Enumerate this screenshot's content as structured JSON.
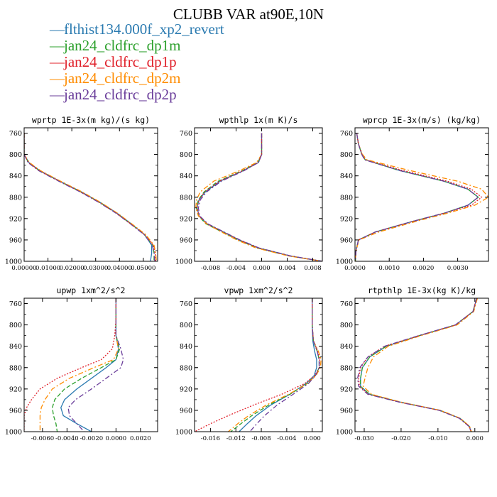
{
  "title": "CLUBB VAR at90E,10N",
  "legend": [
    {
      "label": "flthist134.000f_xp2_revert",
      "color": "#2a7ab0",
      "dash": "solid"
    },
    {
      "label": "jan24_cldfrc_dp1m",
      "color": "#2ca02c",
      "dash": "dash"
    },
    {
      "label": "jan24_cldfrc_dp1p",
      "color": "#e0202a",
      "dash": "dot"
    },
    {
      "label": "jan24_cldfrc_dp2m",
      "color": "#ff8c00",
      "dash": "dashdot"
    },
    {
      "label": "jan24_cldfrc_dp2p",
      "color": "#6a3d9a",
      "dash": "dashdot"
    }
  ],
  "chart_data": [
    {
      "type": "line",
      "title": "wprtp  1E-3x(m kg)/(s kg)",
      "xlim": [
        0.0,
        0.056
      ],
      "ylim": [
        1000,
        750
      ],
      "xticks": [
        "0.00000",
        "0.01000",
        "0.02000",
        "0.03000",
        "0.04000",
        "0.05000"
      ],
      "xtick_values": [
        0.0,
        0.01,
        0.02,
        0.03,
        0.04,
        0.05
      ],
      "yticks": [
        760,
        800,
        840,
        880,
        920,
        960,
        1000
      ],
      "y": [
        760,
        780,
        800,
        815,
        830,
        850,
        870,
        890,
        910,
        930,
        950,
        970,
        985,
        1000
      ],
      "series": [
        {
          "values": [
            0,
            0,
            0,
            0.002,
            0.0065,
            0.015,
            0.024,
            0.032,
            0.039,
            0.045,
            0.0505,
            0.0535,
            0.0535,
            0.053
          ]
        },
        {
          "values": [
            0,
            0,
            0,
            0.0018,
            0.0063,
            0.0148,
            0.0238,
            0.0318,
            0.0388,
            0.0448,
            0.0505,
            0.054,
            0.0545,
            0.0545
          ]
        },
        {
          "values": [
            0,
            0,
            0,
            0.0018,
            0.0063,
            0.0148,
            0.0236,
            0.0316,
            0.0386,
            0.0447,
            0.0505,
            0.0542,
            0.055,
            0.0552
          ]
        },
        {
          "values": [
            0,
            0,
            0,
            0.0022,
            0.0068,
            0.0153,
            0.0243,
            0.0322,
            0.0392,
            0.0452,
            0.051,
            0.0545,
            0.0552,
            0.0555
          ]
        },
        {
          "values": [
            0,
            0,
            0,
            0.0016,
            0.006,
            0.0145,
            0.0235,
            0.0315,
            0.0386,
            0.0446,
            0.0503,
            0.0538,
            0.0546,
            0.0548
          ]
        }
      ]
    },
    {
      "type": "line",
      "title": "wpthlp  1x(m K)/s",
      "xlim": [
        -0.0105,
        0.0095
      ],
      "ylim": [
        1000,
        750
      ],
      "xticks": [
        "-0.008",
        "-0.004",
        "0.000",
        "0.004",
        "0.008"
      ],
      "xtick_values": [
        -0.008,
        -0.004,
        0.0,
        0.004,
        0.008
      ],
      "yticks": [
        760,
        800,
        840,
        880,
        920,
        960,
        1000
      ],
      "y": [
        760,
        780,
        800,
        815,
        830,
        850,
        870,
        885,
        900,
        915,
        930,
        945,
        960,
        975,
        990,
        1000
      ],
      "series": [
        {
          "values": [
            0,
            0,
            0,
            -0.0005,
            -0.0028,
            -0.0065,
            -0.0088,
            -0.0098,
            -0.0101,
            -0.0098,
            -0.0085,
            -0.006,
            -0.0035,
            -0.0005,
            0.0045,
            0.0095
          ]
        },
        {
          "values": [
            0,
            0,
            0,
            -0.0006,
            -0.003,
            -0.0068,
            -0.009,
            -0.0099,
            -0.0102,
            -0.0099,
            -0.0087,
            -0.0062,
            -0.0037,
            -0.0007,
            0.0043,
            0.0095
          ]
        },
        {
          "values": [
            0,
            0,
            0,
            -0.0005,
            -0.0029,
            -0.0066,
            -0.0089,
            -0.0098,
            -0.0101,
            -0.0098,
            -0.0085,
            -0.006,
            -0.0035,
            -0.0005,
            0.0044,
            0.0095
          ]
        },
        {
          "values": [
            0,
            0,
            0,
            -0.0008,
            -0.0034,
            -0.0075,
            -0.0096,
            -0.0102,
            -0.0103,
            -0.0099,
            -0.0086,
            -0.0063,
            -0.0039,
            -0.0009,
            0.0042,
            0.0095
          ]
        },
        {
          "values": [
            0,
            0,
            0,
            -0.0005,
            -0.0027,
            -0.0063,
            -0.0086,
            -0.0096,
            -0.0099,
            -0.0097,
            -0.0084,
            -0.0059,
            -0.0034,
            -0.0004,
            0.0046,
            0.0095
          ]
        }
      ]
    },
    {
      "type": "line",
      "title": "wprcp  1E-3x(m/s) (kg/kg)",
      "xlim": [
        0.0,
        0.0039
      ],
      "ylim": [
        1000,
        750
      ],
      "xticks": [
        "0.0000",
        "0.0010",
        "0.0020",
        "0.0030"
      ],
      "xtick_values": [
        0.0,
        0.001,
        0.002,
        0.003
      ],
      "yticks": [
        760,
        800,
        840,
        880,
        920,
        960,
        1000
      ],
      "y": [
        760,
        780,
        800,
        810,
        830,
        850,
        865,
        880,
        895,
        910,
        925,
        945,
        960,
        980,
        1000
      ],
      "series": [
        {
          "values": [
            5e-05,
            0.0001,
            0.0002,
            0.0003,
            0.0013,
            0.0026,
            0.0033,
            0.0036,
            0.0033,
            0.0026,
            0.0017,
            0.0006,
            0.0001,
            3e-05,
            1e-05
          ]
        },
        {
          "values": [
            5e-05,
            0.0001,
            0.0002,
            0.0003,
            0.0013,
            0.0026,
            0.0033,
            0.0036,
            0.0033,
            0.0026,
            0.0017,
            0.0006,
            0.0001,
            3e-05,
            1e-05
          ]
        },
        {
          "values": [
            5e-05,
            0.0001,
            0.0002,
            0.0003,
            0.0014,
            0.0027,
            0.0034,
            0.0037,
            0.0034,
            0.0026,
            0.0017,
            0.0006,
            0.0001,
            3e-05,
            1e-05
          ]
        },
        {
          "values": [
            5e-05,
            0.0001,
            0.00022,
            0.00035,
            0.0016,
            0.003,
            0.0037,
            0.0039,
            0.0035,
            0.0027,
            0.0018,
            0.0007,
            0.00012,
            3e-05,
            1e-05
          ]
        },
        {
          "values": [
            5e-05,
            0.0001,
            0.0002,
            0.00028,
            0.0013,
            0.0026,
            0.0033,
            0.0036,
            0.0033,
            0.0026,
            0.0017,
            0.0006,
            0.0001,
            3e-05,
            1e-05
          ]
        }
      ]
    },
    {
      "type": "line",
      "title": "upwp  1xm^2/s^2",
      "xlim": [
        -0.0075,
        0.0034
      ],
      "ylim": [
        1000,
        750
      ],
      "xticks": [
        "-0.0060",
        "-0.0040",
        "-0.0020",
        "0.0000",
        "0.0020"
      ],
      "xtick_values": [
        -0.006,
        -0.004,
        -0.002,
        0.0,
        0.002
      ],
      "yticks": [
        760,
        800,
        840,
        880,
        920,
        960,
        1000
      ],
      "y": [
        750,
        790,
        820,
        845,
        865,
        880,
        900,
        920,
        940,
        955,
        970,
        985,
        1000
      ],
      "series": [
        {
          "values": [
            0.0,
            0.0,
            0.0,
            0.0002,
            0.0,
            -0.0008,
            -0.002,
            -0.0032,
            -0.0042,
            -0.0045,
            -0.0043,
            -0.0032,
            -0.002
          ]
        },
        {
          "values": [
            0.0,
            0.0,
            0.0,
            0.0003,
            0.0,
            -0.0012,
            -0.0028,
            -0.0042,
            -0.005,
            -0.0052,
            -0.0051,
            -0.0049,
            -0.0048
          ]
        },
        {
          "values": [
            0.0,
            0.0,
            -0.0001,
            -0.0003,
            -0.0012,
            -0.0028,
            -0.0048,
            -0.0062,
            -0.0069,
            -0.0073,
            -0.0075,
            -0.0075,
            -0.0075
          ]
        },
        {
          "values": [
            0.0,
            0.0,
            0.0,
            0.0002,
            -0.0002,
            -0.0018,
            -0.0038,
            -0.0052,
            -0.0058,
            -0.0061,
            -0.0062,
            -0.0062,
            -0.0062
          ]
        },
        {
          "values": [
            0.0,
            0.0,
            0.0,
            0.0004,
            0.0006,
            0.0004,
            -0.0008,
            -0.002,
            -0.0033,
            -0.0039,
            -0.0038,
            -0.0032,
            -0.0026
          ]
        }
      ]
    },
    {
      "type": "line",
      "title": "vpwp  1xm^2/s^2",
      "xlim": [
        -0.0185,
        0.0016
      ],
      "ylim": [
        1000,
        750
      ],
      "xticks": [
        "-0.016",
        "-0.012",
        "-0.008",
        "-0.004",
        "0.000"
      ],
      "xtick_values": [
        -0.016,
        -0.012,
        -0.008,
        -0.004,
        0.0
      ],
      "yticks": [
        760,
        800,
        840,
        880,
        920,
        960,
        1000
      ],
      "y": [
        750,
        800,
        830,
        850,
        865,
        880,
        895,
        910,
        930,
        950,
        970,
        985,
        1000
      ],
      "series": [
        {
          "values": [
            0.0,
            0.0,
            0.0001,
            0.0004,
            0.0007,
            0.0007,
            0.0003,
            -0.001,
            -0.0035,
            -0.0065,
            -0.0088,
            -0.0102,
            -0.0115
          ]
        },
        {
          "values": [
            0.0,
            0.0,
            0.0002,
            0.0008,
            0.0011,
            0.0011,
            0.0005,
            -0.0008,
            -0.0035,
            -0.0068,
            -0.0095,
            -0.0112,
            -0.0128
          ]
        },
        {
          "values": [
            0.0,
            0.0,
            0.0002,
            0.0009,
            0.0012,
            0.0011,
            0.0004,
            -0.0012,
            -0.0048,
            -0.0092,
            -0.0132,
            -0.016,
            -0.0185
          ]
        },
        {
          "values": [
            0.0,
            0.0,
            0.0002,
            0.001,
            0.0014,
            0.0013,
            0.0006,
            -0.0008,
            -0.0037,
            -0.0072,
            -0.01,
            -0.0117,
            -0.0132
          ]
        },
        {
          "values": [
            0.0,
            0.0,
            0.0002,
            0.0008,
            0.0011,
            0.0011,
            0.0005,
            -0.0006,
            -0.003,
            -0.0055,
            -0.0075,
            -0.0087,
            -0.0098
          ]
        }
      ]
    },
    {
      "type": "line",
      "title": "rtpthlp  1E-3x(kg K)/kg",
      "xlim": [
        -0.0325,
        0.0037
      ],
      "ylim": [
        1000,
        750
      ],
      "xticks": [
        "-0.030",
        "-0.020",
        "-0.010",
        "0.000"
      ],
      "xtick_values": [
        -0.03,
        -0.02,
        -0.01,
        0.0
      ],
      "yticks": [
        760,
        800,
        840,
        880,
        920,
        960,
        1000
      ],
      "y": [
        750,
        775,
        800,
        820,
        840,
        860,
        880,
        900,
        915,
        930,
        945,
        960,
        975,
        990,
        1000
      ],
      "series": [
        {
          "values": [
            0.0005,
            -0.0005,
            -0.0052,
            -0.015,
            -0.024,
            -0.0285,
            -0.0305,
            -0.031,
            -0.031,
            -0.0285,
            -0.02,
            -0.0095,
            -0.004,
            -0.0015,
            -0.001
          ]
        },
        {
          "values": [
            0.0005,
            -0.0005,
            -0.0052,
            -0.015,
            -0.024,
            -0.0285,
            -0.0305,
            -0.031,
            -0.031,
            -0.0285,
            -0.02,
            -0.0095,
            -0.004,
            -0.0015,
            -0.001
          ]
        },
        {
          "values": [
            0.0005,
            -0.0005,
            -0.0052,
            -0.015,
            -0.0245,
            -0.029,
            -0.031,
            -0.0315,
            -0.0313,
            -0.0288,
            -0.0202,
            -0.0096,
            -0.0041,
            -0.0016,
            -0.001
          ]
        },
        {
          "values": [
            0.0007,
            -0.0003,
            -0.0048,
            -0.0145,
            -0.0235,
            -0.0275,
            -0.029,
            -0.0298,
            -0.0303,
            -0.028,
            -0.0198,
            -0.0093,
            -0.0039,
            -0.0014,
            -0.0009
          ]
        },
        {
          "values": [
            0.0005,
            -0.0005,
            -0.0053,
            -0.0152,
            -0.0245,
            -0.029,
            -0.0312,
            -0.0318,
            -0.0315,
            -0.029,
            -0.0203,
            -0.0097,
            -0.0042,
            -0.0016,
            -0.001
          ]
        }
      ]
    }
  ]
}
